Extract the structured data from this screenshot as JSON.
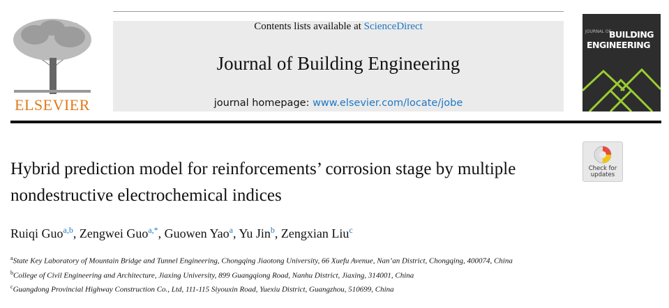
{
  "header": {
    "contents_prefix": "Contents lists available at",
    "contents_link": "ScienceDirect",
    "journal": "Journal of Building Engineering",
    "homepage_prefix": "journal homepage:",
    "homepage_link": "www.elsevier.com/locate/jobe",
    "publisher": "ELSEVIER",
    "cover_small": "JOURNAL OF",
    "cover_title": [
      "BUILDING",
      "ENGINEERING"
    ]
  },
  "check_updates": [
    "Check for",
    "updates"
  ],
  "title": "Hybrid prediction model for reinforcements’ corrosion stage by multiple nondestructive electrochemical indices",
  "authors": [
    {
      "name": "Ruiqi Guo",
      "sup": "a,b"
    },
    {
      "name": "Zengwei Guo",
      "sup": "a,*"
    },
    {
      "name": "Guowen Yao",
      "sup": "a"
    },
    {
      "name": "Yu Jin",
      "sup": "b"
    },
    {
      "name": "Zengxian Liu",
      "sup": "c"
    }
  ],
  "affiliations": [
    {
      "mark": "a",
      "text": "State Key Laboratory of Mountain Bridge and Tunnel Engineering, Chongqing Jiaotong University, 66 Xuefu Avenue, Nan’an District, Chongqing, 400074, China"
    },
    {
      "mark": "b",
      "text": "College of Civil Engineering and Architecture, Jiaxing University, 899 Guangqiong Road, Nanhu District, Jiaxing, 314001, China"
    },
    {
      "mark": "c",
      "text": "Guangdong Provincial Highway Construction Co., Ltd, 111-115 Siyouxin Road, Yuexiu District, Guangzhou, 510699, China"
    }
  ]
}
